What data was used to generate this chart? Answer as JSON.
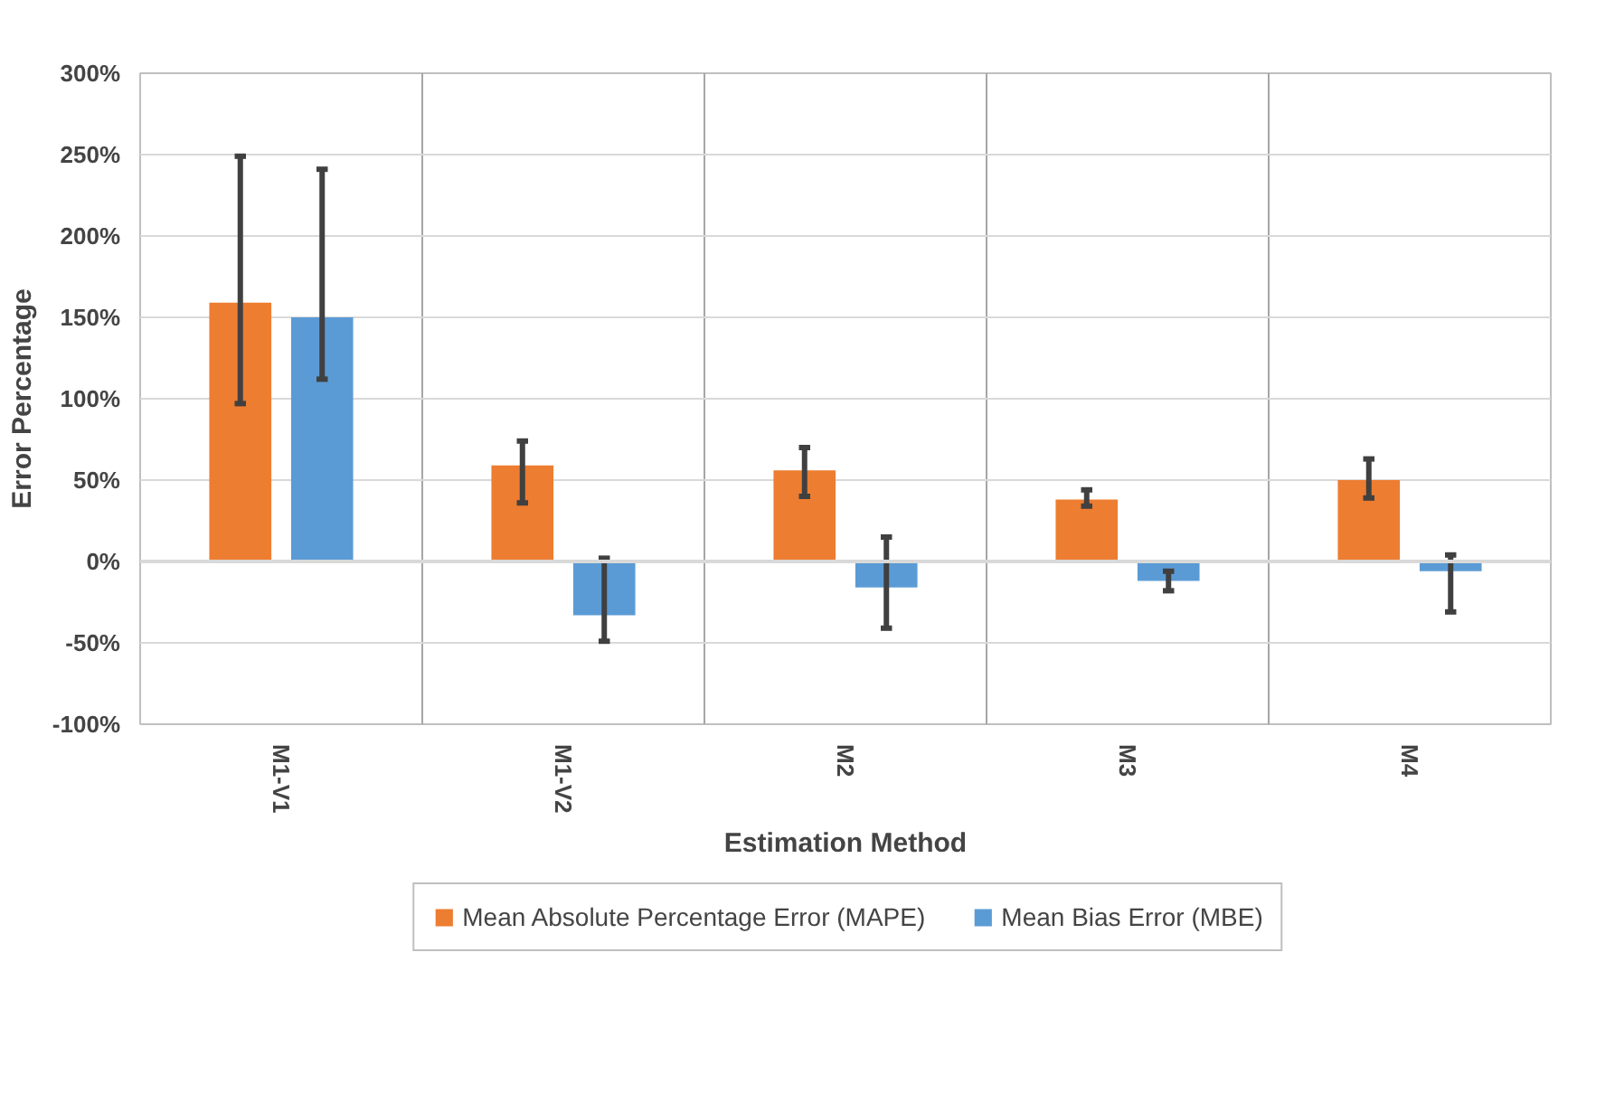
{
  "chart_data": {
    "type": "bar",
    "xlabel": "Estimation Method",
    "ylabel": "Error Percentage",
    "categories": [
      "M1-V1",
      "M1-V2",
      "M2",
      "M3",
      "M4"
    ],
    "series": [
      {
        "name": "Mean Absolute Percentage Error (MAPE)",
        "color": "#ed7d31",
        "values": [
          159,
          59,
          56,
          38,
          50
        ],
        "errors": [
          [
            97,
            249
          ],
          [
            36,
            74
          ],
          [
            40,
            70
          ],
          [
            34,
            44
          ],
          [
            39,
            63
          ]
        ]
      },
      {
        "name": "Mean Bias Error (MBE)",
        "color": "#5b9bd5",
        "values": [
          150,
          -33,
          -16,
          -12,
          -6
        ],
        "errors": [
          [
            112,
            241
          ],
          [
            -49,
            2
          ],
          [
            -41,
            15
          ],
          [
            -18,
            -6
          ],
          [
            -31,
            4
          ]
        ]
      }
    ],
    "ylim": [
      -100,
      300
    ],
    "yticks": [
      {
        "value": -100,
        "label": "-100%"
      },
      {
        "value": -50,
        "label": "-50%"
      },
      {
        "value": 0,
        "label": "0%"
      },
      {
        "value": 50,
        "label": "50%"
      },
      {
        "value": 100,
        "label": "100%"
      },
      {
        "value": 150,
        "label": "150%"
      },
      {
        "value": 200,
        "label": "200%"
      },
      {
        "value": 250,
        "label": "250%"
      },
      {
        "value": 300,
        "label": "300%"
      }
    ],
    "grid": true,
    "legend": "bottom"
  }
}
